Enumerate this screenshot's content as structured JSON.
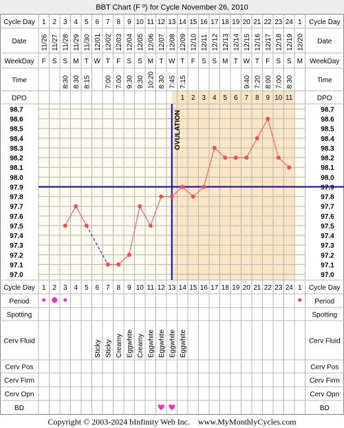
{
  "title": "BBT Chart (F º) for Cycle November 26, 2010",
  "row_labels": {
    "cycle_day": "Cycle Day",
    "date": "Date",
    "weekday": "WeekDay",
    "time": "Time",
    "dpo": "DPO",
    "period": "Period",
    "spotting": "Spotting",
    "cerv_fluid": "Cerv Fluid",
    "cerv_pos": "Cerv Pos",
    "cerv_firm": "Cerv Firm",
    "cerv_opn": "Cerv Opn",
    "bd": "BD"
  },
  "footer": "Copyright © 2003-2024 bInfinity Web Inc.    www.MyMonthlyCycles.com",
  "colors": {
    "grid_line": "#b4b4b4",
    "pre_ovulation_bg": "#fdfaee",
    "post_ovulation_bg": "#fae6c4",
    "temp_line": "#ff4a4a",
    "coverline": "#0000cc",
    "ovulation_line": "#0000cc",
    "period_dot": "#ff2cb4",
    "bd_heart": "#ff2cb4",
    "title_bg": "#eeeeee"
  },
  "chart_data": {
    "type": "line",
    "title": "BBT Chart (F º) for Cycle November 26, 2010",
    "cycle_days": [
      "1",
      "2",
      "3",
      "4",
      "5",
      "6",
      "7",
      "8",
      "9",
      "10",
      "11",
      "12",
      "13",
      "14",
      "15",
      "16",
      "17",
      "18",
      "19",
      "20",
      "21",
      "22",
      "23",
      "24",
      "1"
    ],
    "dates": [
      "11/26",
      "11/27",
      "11/28",
      "11/29",
      "11/30",
      "12/01",
      "12/02",
      "12/03",
      "12/04",
      "12/05",
      "12/06",
      "12/07",
      "12/08",
      "12/09",
      "12/10",
      "12/11",
      "12/12",
      "12/13",
      "12/14",
      "12/15",
      "12/16",
      "12/17",
      "12/18",
      "12/19",
      "12/20"
    ],
    "weekdays": [
      "F",
      "S",
      "S",
      "M",
      "T",
      "W",
      "T",
      "F",
      "S",
      "S",
      "M",
      "T",
      "W",
      "T",
      "F",
      "S",
      "S",
      "M",
      "T",
      "W",
      "T",
      "F",
      "S",
      "S",
      "M"
    ],
    "times": [
      "",
      "",
      "8:30",
      "8:30",
      "8:15",
      "",
      "7:00",
      "7:00",
      "9:30",
      "9:30",
      "10:20",
      "8:30",
      "7:45",
      "7:15",
      "",
      "",
      "",
      "",
      "",
      "9:40",
      "7:20",
      "8:00",
      "7:00",
      "8:30",
      ""
    ],
    "dpo": [
      "",
      "",
      "",
      "",
      "",
      "",
      "",
      "",
      "",
      "",
      "",
      "",
      "",
      "1",
      "2",
      "3",
      "4",
      "5",
      "6",
      "7",
      "8",
      "9",
      "10",
      "11",
      ""
    ],
    "temperatures": [
      null,
      null,
      97.5,
      97.7,
      97.5,
      null,
      97.1,
      97.1,
      97.2,
      97.7,
      97.5,
      97.8,
      97.8,
      97.9,
      97.8,
      97.9,
      98.3,
      98.2,
      98.2,
      98.2,
      98.4,
      98.6,
      98.2,
      98.1,
      null
    ],
    "y_ticks": [
      "98.7",
      "98.6",
      "98.5",
      "98.4",
      "98.3",
      "98.2",
      "98.1",
      "98.0",
      "97.9",
      "97.8",
      "97.7",
      "97.6",
      "97.5",
      "97.4",
      "97.3",
      "97.2",
      "97.1",
      "97.0"
    ],
    "ylim": [
      97.0,
      98.7
    ],
    "coverline": 97.9,
    "ovulation_day_index": 12,
    "ovulation_label": "OVULATION",
    "dashed_segment": [
      4,
      6
    ],
    "period": [
      "small",
      "large",
      "small",
      "",
      "",
      "",
      "",
      "",
      "",
      "",
      "",
      "",
      "",
      "",
      "",
      "",
      "",
      "",
      "",
      "",
      "",
      "",
      "",
      "",
      "small"
    ],
    "cerv_fluid": [
      "",
      "",
      "",
      "",
      "",
      "Sticky",
      "Sticky",
      "Creamy",
      "Eggwhite",
      "Creamy",
      "Eggwhite",
      "Eggwhite",
      "Eggwhite",
      "Eggwhite",
      "",
      "",
      "",
      "",
      "",
      "",
      "",
      "",
      "",
      "",
      ""
    ],
    "bd": [
      false,
      false,
      false,
      false,
      false,
      false,
      false,
      false,
      false,
      false,
      false,
      true,
      true,
      false,
      false,
      false,
      false,
      false,
      false,
      false,
      false,
      false,
      false,
      false,
      false
    ],
    "grid": true,
    "legend": "none"
  }
}
